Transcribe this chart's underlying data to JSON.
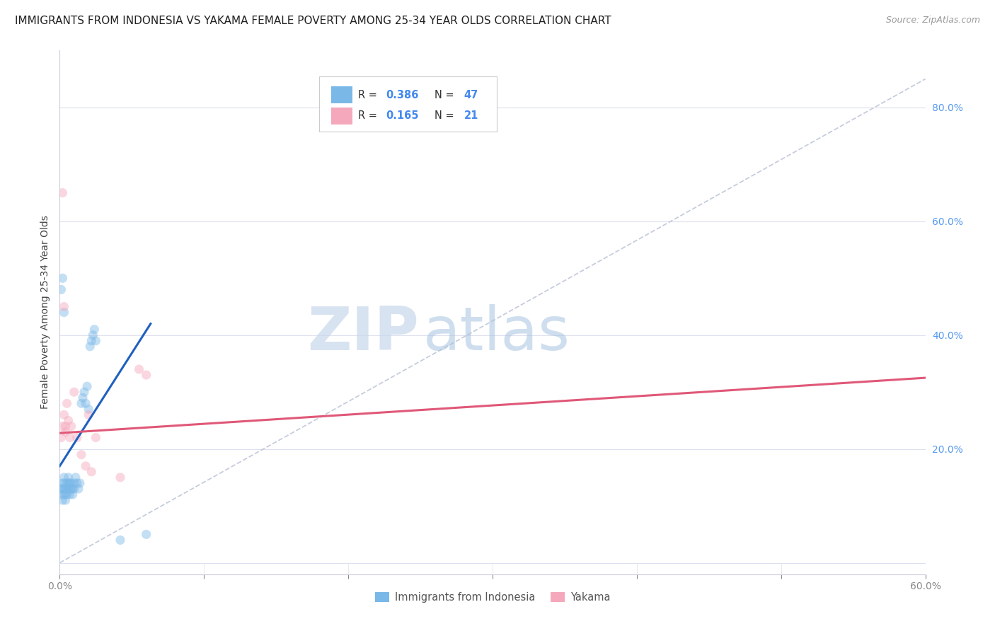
{
  "title": "IMMIGRANTS FROM INDONESIA VS YAKAMA FEMALE POVERTY AMONG 25-34 YEAR OLDS CORRELATION CHART",
  "source": "Source: ZipAtlas.com",
  "ylabel": "Female Poverty Among 25-34 Year Olds",
  "xlim": [
    0.0,
    0.6
  ],
  "ylim": [
    -0.02,
    0.9
  ],
  "xticks": [
    0.0,
    0.1,
    0.2,
    0.3,
    0.4,
    0.5,
    0.6
  ],
  "xticklabels_sparse": {
    "0": "0.0%",
    "6": "60.0%"
  },
  "yticks_right": [
    0.0,
    0.2,
    0.4,
    0.6,
    0.8
  ],
  "yticklabels_right": [
    "",
    "20.0%",
    "40.0%",
    "60.0%",
    "80.0%"
  ],
  "legend_r1": "0.386",
  "legend_n1": "47",
  "legend_r2": "0.165",
  "legend_n2": "21",
  "blue_color": "#7ab8e8",
  "pink_color": "#f5a8bc",
  "blue_line_color": "#2060c0",
  "pink_line_color": "#e05878",
  "scatter_alpha": 0.45,
  "scatter_size": 90,
  "blue_scatter_x": [
    0.001,
    0.001,
    0.002,
    0.002,
    0.002,
    0.003,
    0.003,
    0.003,
    0.003,
    0.004,
    0.004,
    0.004,
    0.005,
    0.005,
    0.005,
    0.006,
    0.006,
    0.006,
    0.007,
    0.007,
    0.007,
    0.008,
    0.008,
    0.009,
    0.009,
    0.01,
    0.01,
    0.011,
    0.012,
    0.013,
    0.014,
    0.015,
    0.016,
    0.017,
    0.018,
    0.019,
    0.02,
    0.021,
    0.022,
    0.023,
    0.024,
    0.025,
    0.06,
    0.001,
    0.002,
    0.003,
    0.042
  ],
  "blue_scatter_y": [
    0.13,
    0.12,
    0.14,
    0.13,
    0.11,
    0.15,
    0.14,
    0.13,
    0.12,
    0.13,
    0.12,
    0.11,
    0.14,
    0.13,
    0.12,
    0.15,
    0.14,
    0.13,
    0.14,
    0.13,
    0.12,
    0.14,
    0.13,
    0.13,
    0.12,
    0.14,
    0.13,
    0.15,
    0.14,
    0.13,
    0.14,
    0.28,
    0.29,
    0.3,
    0.28,
    0.31,
    0.27,
    0.38,
    0.39,
    0.4,
    0.41,
    0.39,
    0.05,
    0.48,
    0.5,
    0.44,
    0.04
  ],
  "pink_scatter_x": [
    0.001,
    0.002,
    0.003,
    0.004,
    0.005,
    0.006,
    0.007,
    0.008,
    0.01,
    0.012,
    0.015,
    0.018,
    0.02,
    0.022,
    0.025,
    0.042,
    0.055,
    0.06,
    0.002,
    0.003,
    0.004
  ],
  "pink_scatter_y": [
    0.22,
    0.24,
    0.26,
    0.23,
    0.28,
    0.25,
    0.22,
    0.24,
    0.3,
    0.22,
    0.19,
    0.17,
    0.26,
    0.16,
    0.22,
    0.15,
    0.34,
    0.33,
    0.65,
    0.45,
    0.24
  ],
  "blue_trend_x": [
    0.0,
    0.063
  ],
  "blue_trend_y": [
    0.17,
    0.42
  ],
  "pink_trend_x": [
    0.0,
    0.6
  ],
  "pink_trend_y": [
    0.228,
    0.325
  ],
  "diag_line_x": [
    0.0,
    0.6
  ],
  "diag_line_y": [
    0.0,
    0.85
  ],
  "watermark_zip": "ZIP",
  "watermark_atlas": "atlas",
  "background_color": "#ffffff",
  "grid_color": "#dde0ee",
  "title_fontsize": 11,
  "source_fontsize": 9,
  "axis_label_fontsize": 10,
  "tick_fontsize": 10,
  "right_tick_color": "#5599ee"
}
